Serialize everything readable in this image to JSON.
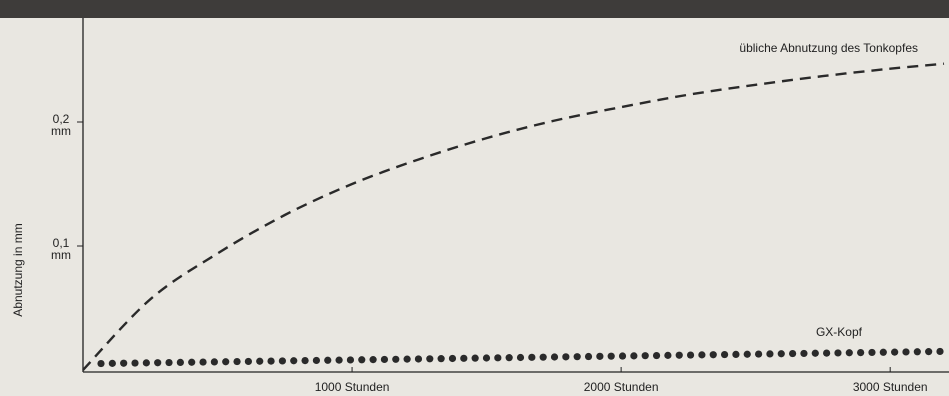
{
  "chart_data": {
    "type": "line",
    "ylabel": "Abnutzung in mm",
    "xlim": [
      0,
      3200
    ],
    "ylim": [
      0,
      0.27
    ],
    "x_ticks": [
      {
        "value": 1000,
        "label": "1000 Stunden"
      },
      {
        "value": 2000,
        "label": "2000 Stunden"
      },
      {
        "value": 3000,
        "label": "3000 Stunden"
      }
    ],
    "y_ticks": [
      {
        "value": 0.1,
        "label_top": "0,1",
        "label_bottom": "mm"
      },
      {
        "value": 0.2,
        "label_top": "0,2",
        "label_bottom": "mm"
      }
    ],
    "grid": false,
    "legend": "none",
    "series": [
      {
        "name": "übliche Abnutzung des Tonkopfes",
        "style": "dashed",
        "color": "#2a2a2a",
        "x": [
          0,
          250,
          500,
          750,
          1000,
          1250,
          1500,
          1750,
          2000,
          2250,
          2500,
          2750,
          3000,
          3200
        ],
        "y": [
          0,
          0.057,
          0.094,
          0.125,
          0.15,
          0.17,
          0.187,
          0.201,
          0.212,
          0.222,
          0.23,
          0.237,
          0.243,
          0.247
        ]
      },
      {
        "name": "GX-Kopf",
        "style": "dotted",
        "color": "#2a2a2a",
        "x": [
          0,
          3200
        ],
        "y": [
          0.005,
          0.015
        ]
      }
    ]
  }
}
